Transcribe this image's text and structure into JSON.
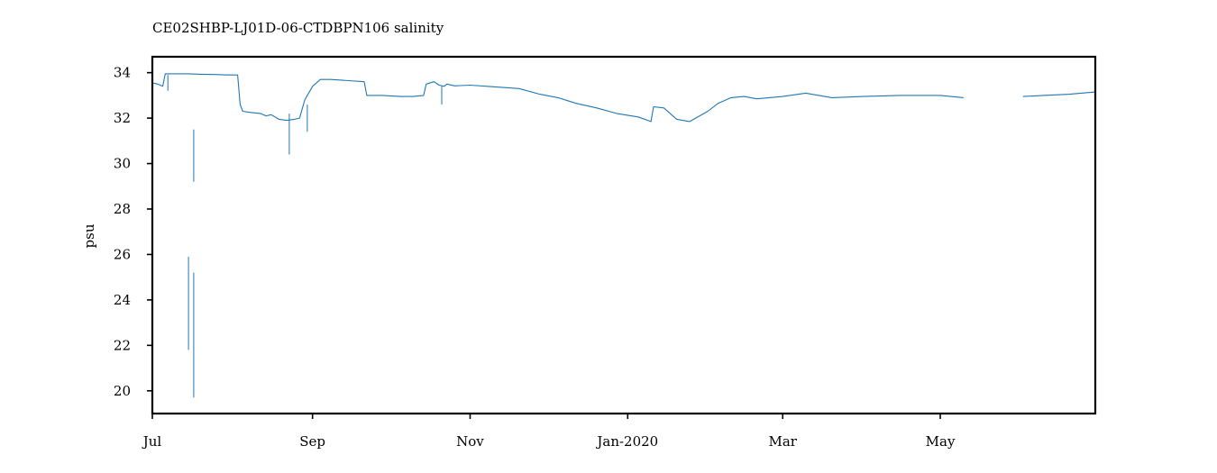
{
  "chart_data": {
    "type": "line",
    "title": "CE02SHBP-LJ01D-06-CTDBPN106 salinity",
    "xlabel": "",
    "ylabel": "psu",
    "x_tick_labels": [
      "Jul",
      "Sep",
      "Nov",
      "Jan-2020",
      "Mar",
      "May"
    ],
    "x_tick_dates": [
      "2019-07-01",
      "2019-09-01",
      "2019-11-01",
      "2020-01-01",
      "2020-03-01",
      "2020-05-01"
    ],
    "xlim": [
      "2019-07-01",
      "2020-06-30"
    ],
    "y_ticks": [
      20,
      22,
      24,
      26,
      28,
      30,
      32,
      34
    ],
    "ylim": [
      19.0,
      34.7
    ],
    "grid": false,
    "legend": "none",
    "series_color": "#1f77b4",
    "series": [
      {
        "x": [
          "2019-07-01",
          "2019-07-03",
          "2019-07-05",
          "2019-07-06",
          "2019-07-07",
          "2019-07-10",
          "2019-07-15",
          "2019-07-20",
          "2019-07-25",
          "2019-07-30",
          "2019-08-03",
          "2019-08-04",
          "2019-08-05",
          "2019-08-08",
          "2019-08-12",
          "2019-08-14",
          "2019-08-16",
          "2019-08-19",
          "2019-08-22",
          "2019-08-25",
          "2019-08-27",
          "2019-08-29",
          "2019-09-01",
          "2019-09-04",
          "2019-09-08",
          "2019-09-15",
          "2019-09-21",
          "2019-09-22",
          "2019-09-28",
          "2019-10-05",
          "2019-10-10",
          "2019-10-14",
          "2019-10-15",
          "2019-10-18",
          "2019-10-20",
          "2019-10-22",
          "2019-10-23",
          "2019-10-26",
          "2019-11-01",
          "2019-11-10",
          "2019-11-20",
          "2019-11-28",
          "2019-12-05",
          "2019-12-12",
          "2019-12-20",
          "2019-12-28",
          "2020-01-05",
          "2020-01-10",
          "2020-01-11",
          "2020-01-15",
          "2020-01-20",
          "2020-01-25",
          "2020-02-01",
          "2020-02-05",
          "2020-02-10",
          "2020-02-15",
          "2020-02-20",
          "2020-03-01",
          "2020-03-10",
          "2020-03-20",
          "2020-04-01",
          "2020-04-15",
          "2020-05-01",
          "2020-05-10"
        ],
        "y": [
          33.55,
          33.5,
          33.4,
          33.95,
          33.95,
          33.95,
          33.95,
          33.93,
          33.92,
          33.9,
          33.9,
          32.6,
          32.3,
          32.25,
          32.2,
          32.1,
          32.15,
          31.95,
          31.9,
          31.95,
          32.0,
          32.8,
          33.4,
          33.7,
          33.7,
          33.65,
          33.6,
          33.0,
          33.0,
          32.95,
          32.95,
          33.0,
          33.5,
          33.6,
          33.45,
          33.4,
          33.5,
          33.42,
          33.45,
          33.38,
          33.3,
          33.05,
          32.9,
          32.65,
          32.45,
          32.2,
          32.05,
          31.85,
          32.5,
          32.45,
          31.95,
          31.85,
          32.3,
          32.65,
          32.9,
          32.95,
          32.85,
          32.95,
          33.1,
          32.9,
          32.95,
          33.0,
          33.0,
          32.9
        ]
      },
      {
        "x": [
          "2020-06-02",
          "2020-06-10",
          "2020-06-20",
          "2020-06-30"
        ],
        "y": [
          32.95,
          33.0,
          33.05,
          33.15
        ]
      }
    ],
    "spikes": [
      {
        "x": "2019-07-15",
        "y": [
          21.8,
          25.9
        ]
      },
      {
        "x": "2019-07-17",
        "y": [
          19.7,
          25.2
        ]
      },
      {
        "x": "2019-07-17",
        "y": [
          29.2,
          31.5
        ]
      },
      {
        "x": "2019-08-23",
        "y": [
          30.4,
          32.2
        ]
      },
      {
        "x": "2019-08-30",
        "y": [
          31.4,
          32.6
        ]
      },
      {
        "x": "2019-07-07",
        "y": [
          33.2,
          33.9
        ]
      },
      {
        "x": "2019-10-21",
        "y": [
          32.6,
          33.4
        ]
      }
    ]
  }
}
